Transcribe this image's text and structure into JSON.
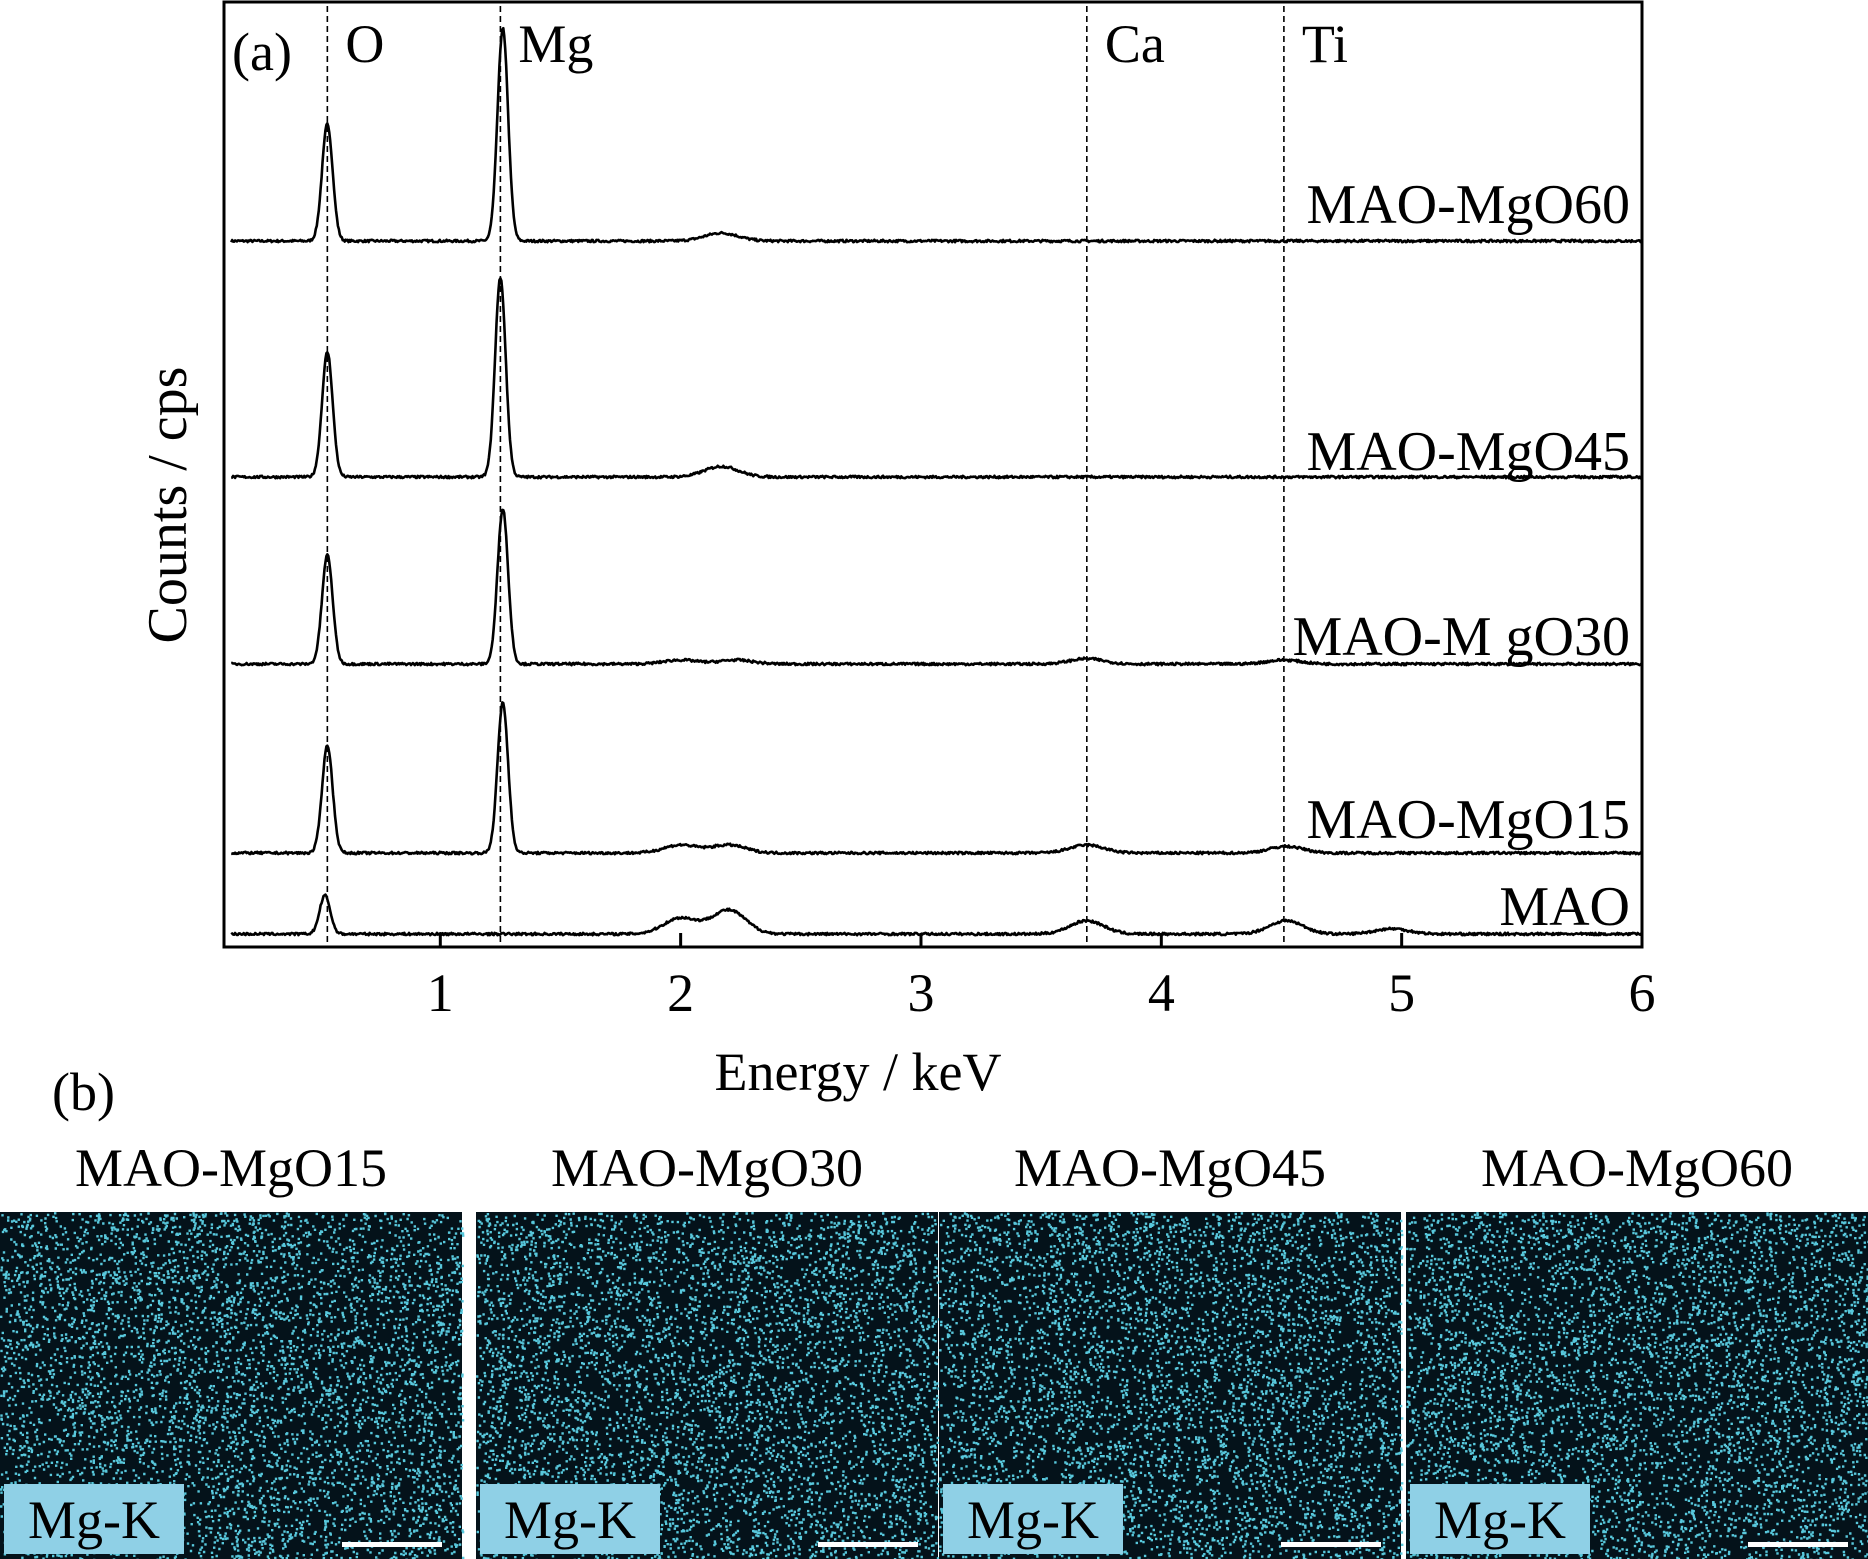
{
  "panel_a": {
    "label": "(a)",
    "xlabel": "Energy / keV",
    "ylabel": "Counts / cps"
  },
  "panel_b": {
    "label": "(b)",
    "maps": [
      {
        "title": "MAO-MgO15",
        "element_label": "Mg-K"
      },
      {
        "title": "MAO-MgO30",
        "element_label": "Mg-K"
      },
      {
        "title": "MAO-MgO45",
        "element_label": "Mg-K"
      },
      {
        "title": "MAO-MgO60",
        "element_label": "Mg-K"
      }
    ],
    "colors": {
      "map_background": "#04121a",
      "map_dots": "#58c8dc",
      "label_box": "#8fd0e6",
      "scale_bar": "#ffffff"
    }
  },
  "chart_data": {
    "type": "line",
    "title": "",
    "xlabel": "Energy / keV",
    "ylabel": "Counts / cps",
    "xlim": [
      0.1,
      6.0
    ],
    "xticks": [
      1,
      2,
      3,
      4,
      5,
      6
    ],
    "y_ticks_shown": false,
    "stacked_offset_plot": true,
    "line_color": "#000000",
    "reference_lines": [
      {
        "label": "O",
        "x": 0.53
      },
      {
        "label": "Mg",
        "x": 1.25
      },
      {
        "label": "Ca",
        "x": 3.69
      },
      {
        "label": "Ti",
        "x": 4.51
      }
    ],
    "series": [
      {
        "name": "MAO-MgO60",
        "peaks": [
          {
            "x": 0.53,
            "height": 0.88
          },
          {
            "x": 1.26,
            "height": 1.6
          },
          {
            "x": 2.17,
            "height": 0.06
          }
        ]
      },
      {
        "name": "MAO-MgO45",
        "peaks": [
          {
            "x": 0.53,
            "height": 0.94
          },
          {
            "x": 1.25,
            "height": 1.5
          },
          {
            "x": 2.17,
            "height": 0.08
          }
        ]
      },
      {
        "name": "MAO-M gO30",
        "peaks": [
          {
            "x": 0.53,
            "height": 0.82
          },
          {
            "x": 1.26,
            "height": 1.17
          },
          {
            "x": 2.0,
            "height": 0.03
          },
          {
            "x": 2.23,
            "height": 0.03
          },
          {
            "x": 3.69,
            "height": 0.04
          },
          {
            "x": 4.51,
            "height": 0.03
          }
        ]
      },
      {
        "name": "MAO-MgO15",
        "peaks": [
          {
            "x": 0.53,
            "height": 0.81
          },
          {
            "x": 1.26,
            "height": 1.13
          },
          {
            "x": 2.0,
            "height": 0.06
          },
          {
            "x": 2.2,
            "height": 0.06
          },
          {
            "x": 3.69,
            "height": 0.06
          },
          {
            "x": 4.52,
            "height": 0.05
          }
        ]
      },
      {
        "name": "MAO",
        "peaks": [
          {
            "x": 0.52,
            "height": 0.29
          },
          {
            "x": 2.0,
            "height": 0.12
          },
          {
            "x": 2.2,
            "height": 0.18
          },
          {
            "x": 3.69,
            "height": 0.1
          },
          {
            "x": 4.52,
            "height": 0.1
          },
          {
            "x": 4.96,
            "height": 0.04
          }
        ]
      }
    ]
  }
}
